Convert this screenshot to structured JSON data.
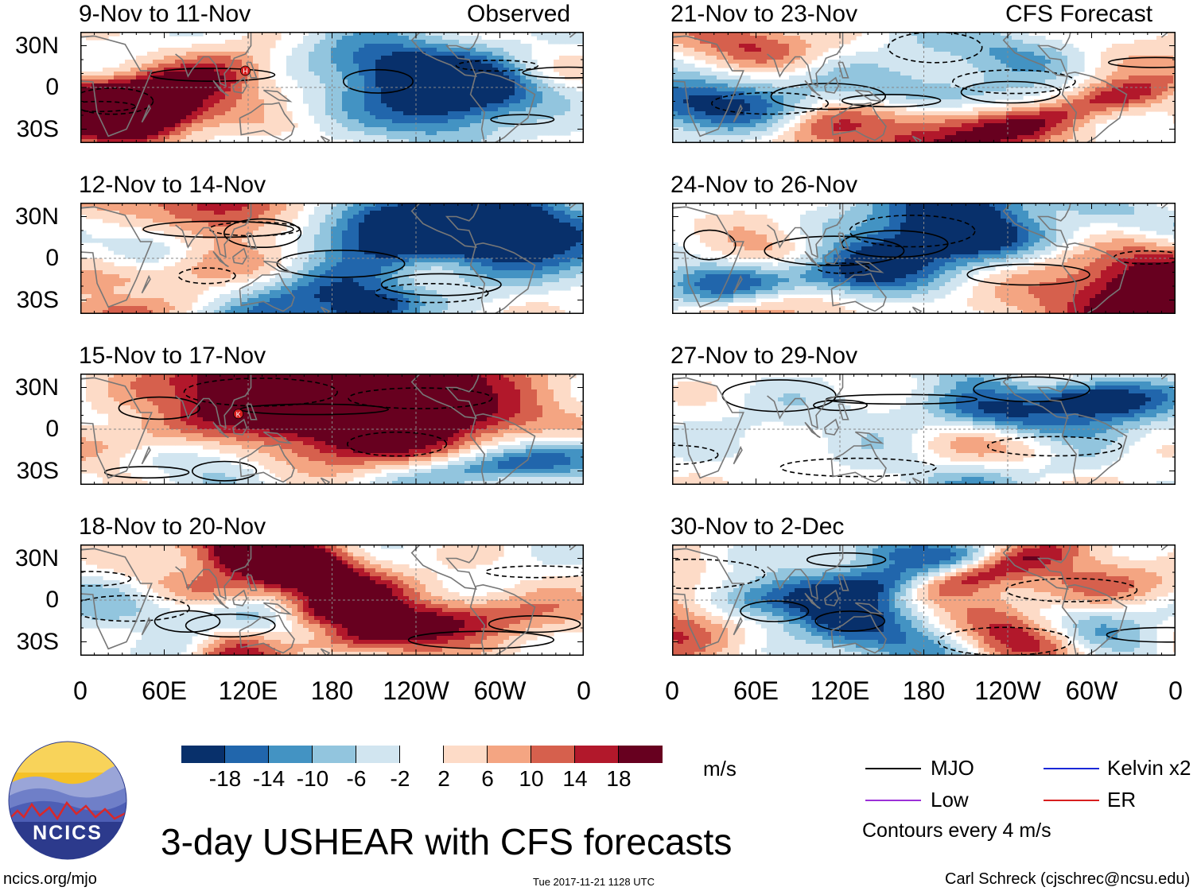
{
  "header": {
    "observed_label": "Observed",
    "forecast_label": "CFS Forecast"
  },
  "panels": {
    "left": [
      {
        "title": "9-Nov to 11-Nov",
        "markers": [
          {
            "label": "H",
            "lon": 118,
            "lat": 12
          }
        ]
      },
      {
        "title": "12-Nov to 14-Nov",
        "markers": []
      },
      {
        "title": "15-Nov to 17-Nov",
        "markers": [
          {
            "label": "K",
            "lon": 113,
            "lat": 11
          }
        ]
      },
      {
        "title": "18-Nov to 20-Nov",
        "markers": []
      }
    ],
    "right": [
      {
        "title": "21-Nov to 23-Nov",
        "markers": []
      },
      {
        "title": "24-Nov to 26-Nov",
        "markers": []
      },
      {
        "title": "27-Nov to 29-Nov",
        "markers": []
      },
      {
        "title": "30-Nov to 2-Dec",
        "markers": []
      }
    ]
  },
  "chart_data": {
    "type": "heatmap",
    "title": "3-day USHEAR with CFS forecasts",
    "variable": "USHEAR",
    "units": "m/s",
    "y_ticks": [
      "30N",
      "0",
      "30S"
    ],
    "x_ticks": [
      "0",
      "60E",
      "120E",
      "180",
      "120W",
      "60W",
      "0"
    ],
    "lon_range": [
      0,
      360
    ],
    "lat_range": [
      -40,
      40
    ],
    "colorbar": {
      "levels": [
        "-18",
        "-14",
        "-10",
        "-6",
        "-2",
        "2",
        "6",
        "10",
        "14",
        "18"
      ],
      "colors": [
        "#08306b",
        "#2166ac",
        "#4393c3",
        "#92c5de",
        "#d1e5f0",
        "#ffffff",
        "#fddbc7",
        "#f4a582",
        "#d6604d",
        "#b2182b",
        "#67001f"
      ]
    },
    "contour_interval": "Contours every 4 m/s"
  },
  "legend": {
    "items": [
      {
        "label": "MJO",
        "color": "#000000"
      },
      {
        "label": "Kelvin x2",
        "color": "#1a28d8"
      },
      {
        "label": "Low",
        "color": "#9b30d8"
      },
      {
        "label": "ER",
        "color": "#d81e1e"
      }
    ],
    "note": "Contours every 4 m/s"
  },
  "branding": {
    "logo_text": "NCICS"
  },
  "footer": {
    "left": "ncics.org/mjo",
    "center": "Tue 2017-11-21 1128 UTC",
    "right": "Carl Schreck (cjschrec@ncsu.edu)"
  }
}
